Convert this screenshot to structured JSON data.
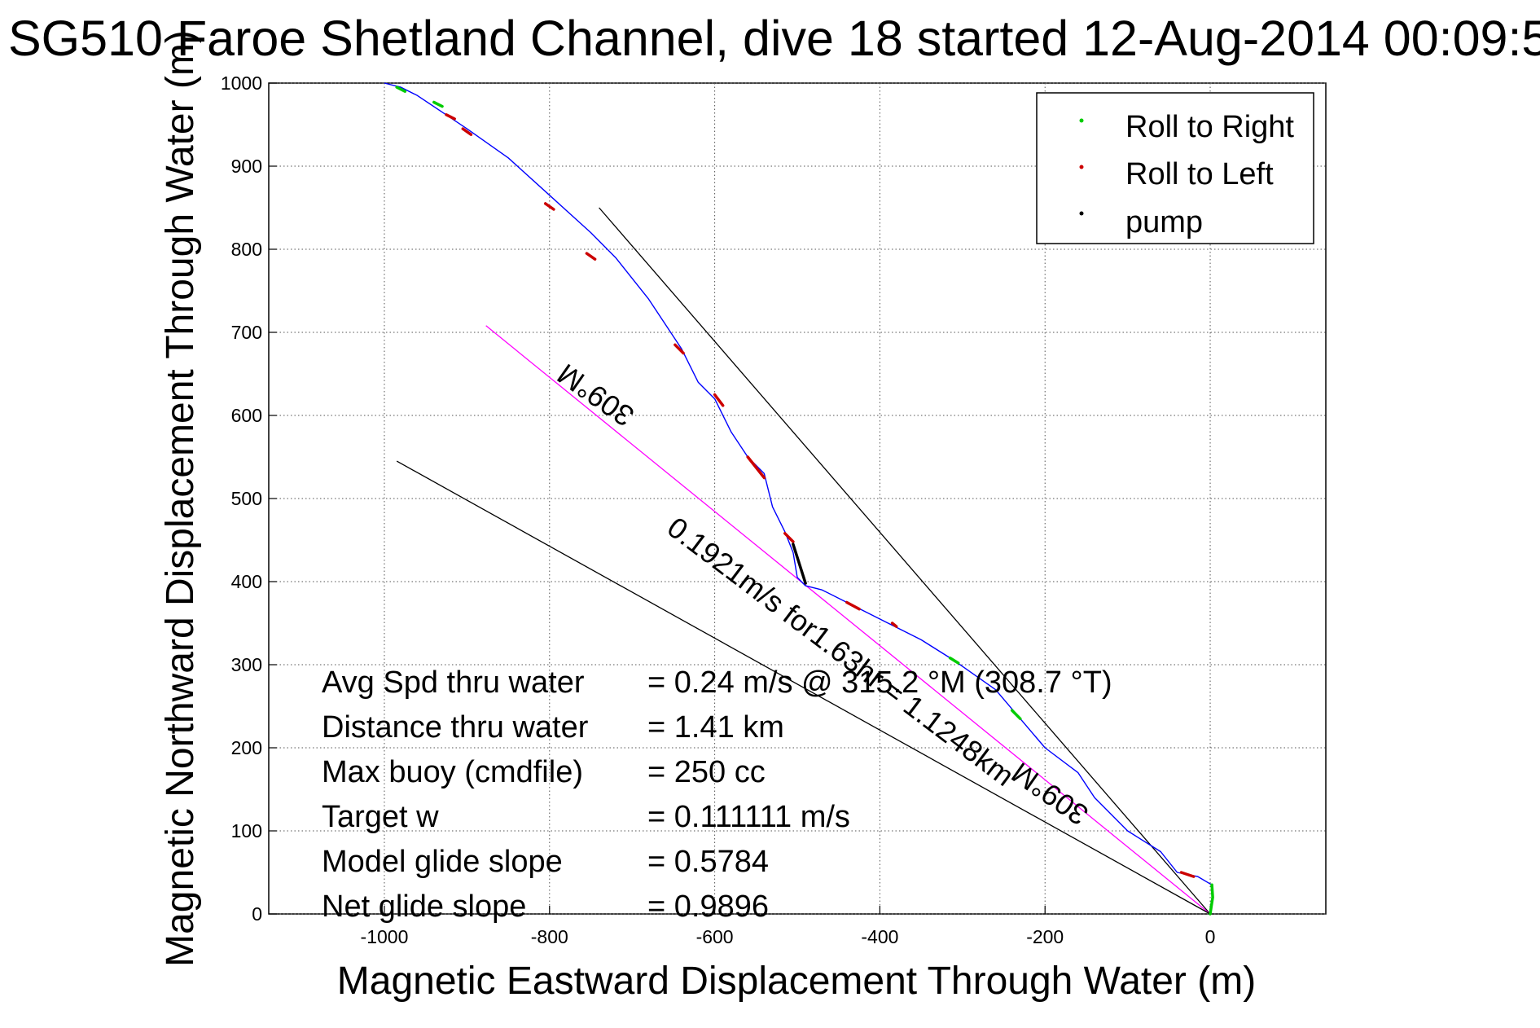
{
  "chart_data": {
    "type": "line",
    "title": "SG510 Faroe Shetland Channel, dive 18 started 12-Aug-2014 00:09:5",
    "xlabel": "Magnetic Eastward Displacement Through Water (m)",
    "ylabel": "Magnetic Northward Displacement Through Water (m)",
    "xlim": [
      -1140,
      140
    ],
    "ylim": [
      0,
      1000
    ],
    "xticks": [
      -1000,
      -800,
      -600,
      -400,
      -200,
      0
    ],
    "yticks": [
      0,
      100,
      200,
      300,
      400,
      500,
      600,
      700,
      800,
      900,
      1000
    ],
    "grid": true,
    "legend_position": "top-right",
    "legend": [
      {
        "label": "Roll to Right",
        "color": "#00cc00"
      },
      {
        "label": "Roll to Left",
        "color": "#cc0000"
      },
      {
        "label": "pump",
        "color": "#000000"
      }
    ],
    "track": {
      "color": "#0000ff",
      "x": [
        0,
        3,
        2,
        -15,
        -40,
        -60,
        -100,
        -140,
        -160,
        -200,
        -230,
        -260,
        -310,
        -350,
        -390,
        -440,
        -470,
        -490,
        -500,
        -505,
        -515,
        -530,
        -540,
        -560,
        -580,
        -600,
        -620,
        -640,
        -680,
        -720,
        -750,
        -800,
        -850,
        -900,
        -930,
        -960,
        -980,
        -1000
      ],
      "y": [
        0,
        20,
        35,
        45,
        50,
        75,
        100,
        140,
        170,
        200,
        235,
        270,
        305,
        330,
        350,
        375,
        390,
        395,
        405,
        435,
        460,
        490,
        530,
        550,
        580,
        620,
        640,
        680,
        740,
        790,
        820,
        865,
        910,
        945,
        965,
        985,
        995,
        1000
      ]
    },
    "roll_right_segments": [
      {
        "x": [
          0,
          3,
          2
        ],
        "y": [
          0,
          20,
          35
        ]
      },
      {
        "x": [
          -240,
          -230
        ],
        "y": [
          245,
          235
        ]
      },
      {
        "x": [
          -315,
          -305
        ],
        "y": [
          308,
          302
        ]
      },
      {
        "x": [
          -940,
          -930
        ],
        "y": [
          977,
          972
        ]
      },
      {
        "x": [
          -985,
          -975
        ],
        "y": [
          995,
          990
        ]
      }
    ],
    "roll_left_segments": [
      {
        "x": [
          -35,
          -20
        ],
        "y": [
          50,
          45
        ]
      },
      {
        "x": [
          -440,
          -425
        ],
        "y": [
          375,
          367
        ]
      },
      {
        "x": [
          -385,
          -380
        ],
        "y": [
          350,
          346
        ]
      },
      {
        "x": [
          -515,
          -505
        ],
        "y": [
          458,
          448
        ]
      },
      {
        "x": [
          -560,
          -540
        ],
        "y": [
          550,
          525
        ]
      },
      {
        "x": [
          -600,
          -590
        ],
        "y": [
          625,
          612
        ]
      },
      {
        "x": [
          -648,
          -638
        ],
        "y": [
          685,
          675
        ]
      },
      {
        "x": [
          -755,
          -745
        ],
        "y": [
          795,
          788
        ]
      },
      {
        "x": [
          -805,
          -795
        ],
        "y": [
          855,
          848
        ]
      },
      {
        "x": [
          -905,
          -895
        ],
        "y": [
          945,
          938
        ]
      },
      {
        "x": [
          -925,
          -915
        ],
        "y": [
          962,
          957
        ]
      }
    ],
    "pump_segments": [
      {
        "x": [
          -505,
          -490
        ],
        "y": [
          445,
          398
        ]
      }
    ],
    "heading_lines": [
      {
        "name": "depth-averaged current",
        "color": "#000000",
        "x": [
          0,
          -740
        ],
        "y": [
          0,
          850
        ]
      },
      {
        "name": "course",
        "color": "#ff00ff",
        "x": [
          0,
          -877
        ],
        "y": [
          0,
          708
        ]
      },
      {
        "name": "lower bound",
        "color": "#000000",
        "x": [
          0,
          -985
        ],
        "y": [
          0,
          545
        ]
      }
    ],
    "annotations": [
      {
        "text": "309°M",
        "x": -695,
        "y": 605,
        "angle": -145
      },
      {
        "text": "0.1921m/s for1.63hr = 1.1248km",
        "x": -660,
        "y": 460,
        "angle": 37
      },
      {
        "text": "309°M",
        "x": -145,
        "y": 125,
        "angle": -145
      }
    ],
    "stats": [
      {
        "label": "Avg Spd thru water",
        "value": "=  0.24 m/s @ 315.2 °M (308.7 °T)"
      },
      {
        "label": "Distance thru water",
        "value": "=  1.41 km"
      },
      {
        "label": "Max buoy (cmdfile)",
        "value": "= 250 cc"
      },
      {
        "label": "Target w",
        "value": "= 0.111111 m/s"
      },
      {
        "label": "Model glide slope",
        "value": "= 0.5784"
      },
      {
        "label": "Net glide slope",
        "value": "= 0.9896"
      }
    ]
  }
}
